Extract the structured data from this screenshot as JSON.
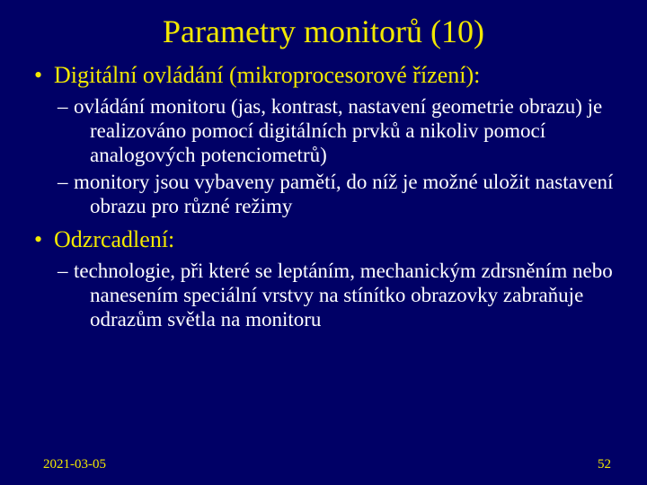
{
  "colors": {
    "background": "#000066",
    "title": "#f2e800",
    "bullet_l1": "#f2e800",
    "bullet_l2": "#ffffff",
    "footer": "#f2e800"
  },
  "title": "Parametry monitorů (10)",
  "bullets": [
    {
      "label": "Digitální ovládání (mikroprocesorové řízení):",
      "subs": [
        "ovládání monitoru (jas, kontrast, nastavení geo­metrie obrazu) je realizováno pomocí digitálních prvků a nikoliv pomocí analogových potenciomet­rů)",
        "monitory jsou vybaveny pamětí, do níž je možné uložit nastavení obrazu pro různé režimy"
      ]
    },
    {
      "label": "Odzrcadlení:",
      "subs": [
        "technologie, při které se leptáním, mechanickým zdrsněním nebo nanesením speciální vrstvy na stínítko obrazovky zabraňuje odrazům světla na monitoru"
      ]
    }
  ],
  "footer": {
    "date": "2021-03-05",
    "page": "52"
  }
}
